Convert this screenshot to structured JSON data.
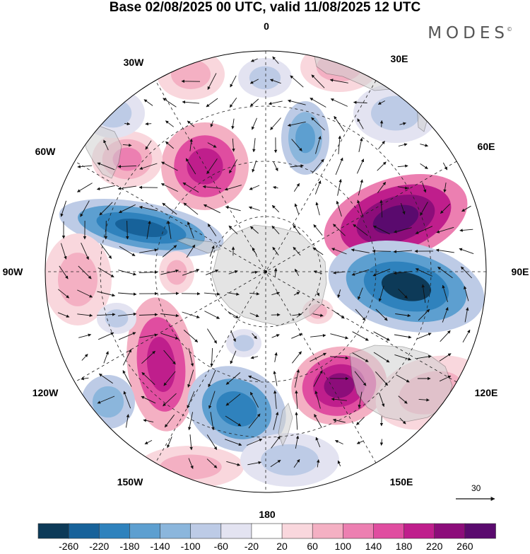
{
  "header": {
    "title": "Base 02/08/2025 00 UTC, valid 11/08/2025 12 UTC",
    "logo": "MODES",
    "logo_mark": "©"
  },
  "map": {
    "projection": "south-polar-stereographic",
    "longitude_labels": [
      {
        "text": "0",
        "lon": 0
      },
      {
        "text": "30E",
        "lon": 30
      },
      {
        "text": "60E",
        "lon": 60
      },
      {
        "text": "90E",
        "lon": 90
      },
      {
        "text": "120E",
        "lon": 120
      },
      {
        "text": "150E",
        "lon": 150
      },
      {
        "text": "180",
        "lon": 180
      },
      {
        "text": "150W",
        "lon": -150
      },
      {
        "text": "120W",
        "lon": -120
      },
      {
        "text": "90W",
        "lon": -90
      },
      {
        "text": "60W",
        "lon": -60
      },
      {
        "text": "30W",
        "lon": -30
      }
    ],
    "reference_vector": {
      "value": "30"
    },
    "colors": {
      "land": "#d8d8d8",
      "graticule": "#222222",
      "coastline": "#555555",
      "wind_arrow": "#111111"
    }
  },
  "colorbar": {
    "labels": [
      "-260",
      "-220",
      "-180",
      "-140",
      "-100",
      "-60",
      "-20",
      "20",
      "60",
      "100",
      "140",
      "180",
      "220",
      "260"
    ],
    "colors": [
      "#0d3a58",
      "#17629a",
      "#2f82bd",
      "#5d9fd0",
      "#8bb6dc",
      "#bdcbe6",
      "#e3e3f1",
      "#ffffff",
      "#f9d7dd",
      "#f4b0c3",
      "#ec7fb1",
      "#e04da0",
      "#bf1e8c",
      "#8c0d7a",
      "#5a0a6e"
    ]
  }
}
